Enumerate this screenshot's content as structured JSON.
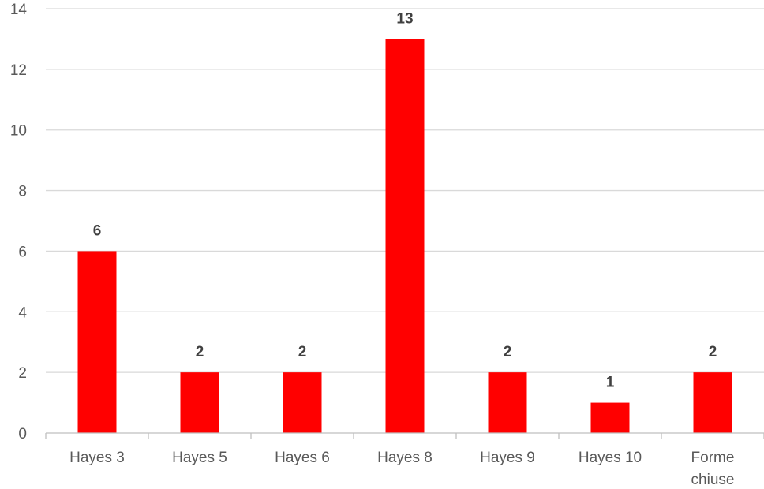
{
  "chart_data": {
    "type": "bar",
    "title": "",
    "xlabel": "",
    "ylabel": "",
    "categories": [
      "Hayes 3",
      "Hayes 5",
      "Hayes 6",
      "Hayes 8",
      "Hayes 9",
      "Hayes 10",
      "Forme chiuse"
    ],
    "values": [
      6,
      2,
      2,
      13,
      2,
      1,
      2
    ],
    "ylim": [
      0,
      14
    ],
    "yticks": [
      0,
      2,
      4,
      6,
      8,
      10,
      12,
      14
    ],
    "grid": true,
    "legend": "none",
    "bar_color": "#ff0000",
    "data_labels": true
  }
}
